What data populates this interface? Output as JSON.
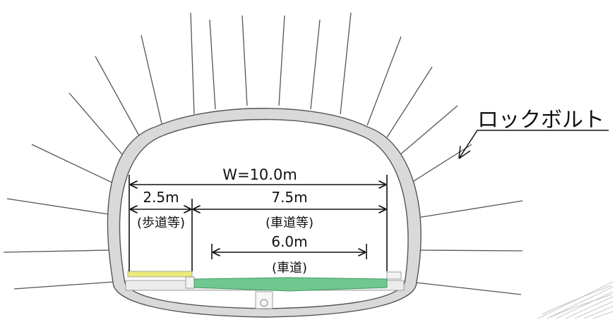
{
  "callout": {
    "label": "ロックボルト"
  },
  "dimensions": {
    "total_width": "W=10.0m",
    "sidewalk": {
      "value": "2.5m",
      "label": "(歩道等)"
    },
    "road_area": {
      "value": "7.5m",
      "label": "(車道等)"
    },
    "carriageway": {
      "value": "6.0m",
      "label": "(車道)"
    }
  },
  "colors": {
    "lining": "#d9d9d9",
    "lining_edge": "#555555",
    "sidewalk": "#e9ea7a",
    "carriageway": "#6fc88f",
    "lines": "#111111"
  },
  "icons": [
    "callout-arrow-icon",
    "drain-icon",
    "hatching-icon"
  ]
}
